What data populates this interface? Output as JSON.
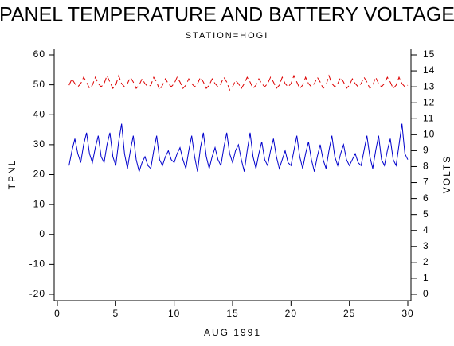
{
  "chart_data": {
    "type": "line",
    "title": "PANEL TEMPERATURE AND BATTERY VOLTAGE",
    "subtitle": "STATION=HOGI",
    "x_label": "AUG 1991",
    "y_label": "TPNL",
    "y2_label": "VOLTS",
    "x": [
      1,
      1.25,
      1.5,
      1.75,
      2,
      2.25,
      2.5,
      2.75,
      3,
      3.25,
      3.5,
      3.75,
      4,
      4.25,
      4.5,
      4.75,
      5,
      5.25,
      5.5,
      5.75,
      6,
      6.25,
      6.5,
      6.75,
      7,
      7.25,
      7.5,
      7.75,
      8,
      8.25,
      8.5,
      8.75,
      9,
      9.25,
      9.5,
      9.75,
      10,
      10.25,
      10.5,
      10.75,
      11,
      11.25,
      11.5,
      11.75,
      12,
      12.25,
      12.5,
      12.75,
      13,
      13.25,
      13.5,
      13.75,
      14,
      14.25,
      14.5,
      14.75,
      15,
      15.25,
      15.5,
      15.75,
      16,
      16.25,
      16.5,
      16.75,
      17,
      17.25,
      17.5,
      17.75,
      18,
      18.25,
      18.5,
      18.75,
      19,
      19.25,
      19.5,
      19.75,
      20,
      20.25,
      20.5,
      20.75,
      21,
      21.25,
      21.5,
      21.75,
      22,
      22.25,
      22.5,
      22.75,
      23,
      23.25,
      23.5,
      23.75,
      24,
      24.25,
      24.5,
      24.75,
      25,
      25.25,
      25.5,
      25.75,
      26,
      26.25,
      26.5,
      26.75,
      27,
      27.25,
      27.5,
      27.75,
      28,
      28.25,
      28.5,
      28.75,
      29,
      29.25,
      29.5,
      29.75,
      30
    ],
    "series": [
      {
        "name": "TPNL",
        "color": "#0000cc",
        "axis": "y",
        "dashed": false,
        "values": [
          23,
          28,
          32,
          27,
          24,
          30,
          34,
          27,
          24,
          29,
          33,
          26,
          24,
          30,
          34,
          26,
          23,
          31,
          37,
          27,
          22,
          28,
          33,
          25,
          21,
          24,
          26,
          23,
          22,
          28,
          33,
          25,
          23,
          26,
          28,
          25,
          24,
          27,
          29,
          25,
          22,
          28,
          33,
          26,
          21,
          29,
          34,
          26,
          22,
          26,
          29,
          25,
          23,
          29,
          34,
          27,
          24,
          28,
          30,
          25,
          21,
          28,
          34,
          26,
          22,
          27,
          31,
          25,
          23,
          28,
          32,
          26,
          22,
          25,
          28,
          24,
          23,
          28,
          33,
          26,
          22,
          27,
          31,
          25,
          21,
          26,
          30,
          25,
          22,
          28,
          33,
          26,
          23,
          27,
          30,
          25,
          23,
          25,
          27,
          24,
          23,
          28,
          33,
          26,
          22,
          28,
          33,
          25,
          23,
          28,
          32,
          25,
          23,
          30,
          37,
          27,
          25
        ]
      },
      {
        "name": "VOLTS",
        "color": "#dd0000",
        "axis": "y2",
        "dashed": true,
        "values": [
          13.1,
          13.5,
          13.2,
          13.0,
          13.2,
          13.6,
          13.3,
          12.9,
          13.1,
          13.6,
          13.2,
          13.0,
          13.2,
          13.7,
          13.3,
          12.9,
          13.1,
          13.7,
          13.2,
          13.0,
          13.2,
          13.6,
          13.3,
          12.9,
          13.1,
          13.5,
          13.2,
          13.0,
          13.1,
          13.6,
          13.3,
          12.8,
          13.1,
          13.5,
          13.2,
          13.0,
          13.2,
          13.6,
          13.3,
          12.9,
          13.1,
          13.5,
          13.2,
          13.0,
          13.2,
          13.6,
          13.3,
          12.9,
          13.1,
          13.5,
          13.2,
          13.0,
          13.2,
          13.6,
          13.3,
          12.8,
          13.0,
          13.4,
          13.2,
          12.9,
          13.2,
          13.6,
          13.3,
          12.9,
          13.1,
          13.5,
          13.2,
          13.0,
          13.2,
          13.6,
          13.3,
          12.9,
          13.1,
          13.6,
          13.2,
          13.0,
          13.2,
          13.7,
          13.3,
          12.9,
          13.1,
          13.6,
          13.2,
          13.0,
          13.2,
          13.6,
          13.3,
          12.9,
          13.1,
          13.7,
          13.2,
          13.0,
          13.2,
          13.6,
          13.3,
          12.9,
          13.1,
          13.5,
          13.2,
          13.0,
          13.2,
          13.6,
          13.3,
          12.9,
          13.1,
          13.6,
          13.2,
          13.0,
          13.2,
          13.6,
          13.3,
          12.9,
          13.1,
          13.6,
          13.2,
          13.0,
          13.1
        ]
      }
    ],
    "xlim": [
      0,
      30
    ],
    "xticks": [
      0,
      5,
      10,
      15,
      20,
      25,
      30
    ],
    "ylim": [
      -20,
      60
    ],
    "yticks": [
      -20,
      -10,
      0,
      10,
      20,
      30,
      40,
      50,
      60
    ],
    "y2lim": [
      0,
      15
    ],
    "y2ticks": [
      0,
      1,
      2,
      3,
      4,
      5,
      6,
      7,
      8,
      9,
      10,
      11,
      12,
      13,
      14,
      15
    ]
  }
}
